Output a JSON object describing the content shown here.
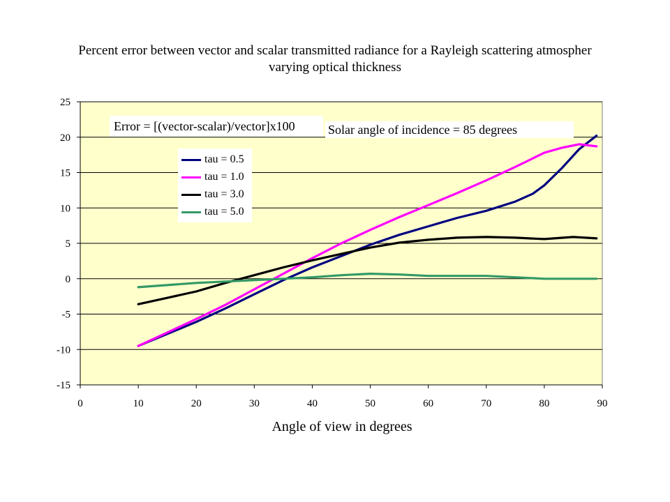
{
  "chart_data": {
    "type": "line",
    "title_line1": "Percent error between vector and scalar transmitted radiance for a Rayleigh scattering atmospher",
    "title_line2": "varying optical thickness",
    "xlabel": "Angle of view in degrees",
    "ylabel": "",
    "xlim": [
      0,
      90
    ],
    "ylim": [
      -15,
      25
    ],
    "xticks": [
      "0",
      "10",
      "20",
      "30",
      "40",
      "50",
      "60",
      "70",
      "80",
      "90"
    ],
    "yticks": [
      "-15",
      "-10",
      "-5",
      "0",
      "5",
      "10",
      "15",
      "20",
      "25"
    ],
    "grid": "horizontal",
    "legend_position": "upper-left",
    "annotations": [
      "Error = [(vector-scalar)/vector]x100",
      "Solar angle of incidence = 85 degrees"
    ],
    "series": [
      {
        "name": "tau = 0.5",
        "color": "#000080",
        "x": [
          10,
          15,
          20,
          25,
          30,
          35,
          40,
          45,
          50,
          55,
          60,
          65,
          70,
          75,
          78,
          80,
          83,
          86,
          89
        ],
        "y": [
          -9.5,
          -7.8,
          -6.1,
          -4.2,
          -2.2,
          -0.2,
          1.6,
          3.2,
          4.8,
          6.2,
          7.4,
          8.6,
          9.6,
          10.9,
          12.0,
          13.2,
          15.6,
          18.3,
          20.2
        ]
      },
      {
        "name": "tau = 1.0",
        "color": "#ff00ff",
        "x": [
          10,
          15,
          20,
          25,
          30,
          35,
          40,
          45,
          50,
          55,
          60,
          65,
          70,
          75,
          80,
          83,
          86,
          89
        ],
        "y": [
          -9.5,
          -7.6,
          -5.7,
          -3.7,
          -1.5,
          0.7,
          2.9,
          5.0,
          6.9,
          8.7,
          10.4,
          12.1,
          13.9,
          15.8,
          17.8,
          18.5,
          19.0,
          18.7
        ]
      },
      {
        "name": "tau = 3.0",
        "color": "#000000",
        "x": [
          10,
          15,
          20,
          25,
          30,
          35,
          40,
          45,
          50,
          55,
          60,
          65,
          70,
          75,
          80,
          85,
          89
        ],
        "y": [
          -3.6,
          -2.7,
          -1.8,
          -0.6,
          0.5,
          1.6,
          2.6,
          3.5,
          4.4,
          5.1,
          5.5,
          5.8,
          5.9,
          5.8,
          5.6,
          5.9,
          5.7
        ]
      },
      {
        "name": "tau = 5.0",
        "color": "#339966",
        "x": [
          10,
          15,
          20,
          25,
          30,
          35,
          40,
          45,
          50,
          55,
          60,
          65,
          70,
          75,
          80,
          85,
          89
        ],
        "y": [
          -1.2,
          -0.9,
          -0.6,
          -0.4,
          -0.2,
          0.0,
          0.2,
          0.5,
          0.7,
          0.6,
          0.4,
          0.4,
          0.4,
          0.2,
          0.0,
          0.0,
          0.0
        ]
      }
    ],
    "colors": {
      "plot_background": "#ffffcc",
      "gridline": "#000000"
    }
  }
}
